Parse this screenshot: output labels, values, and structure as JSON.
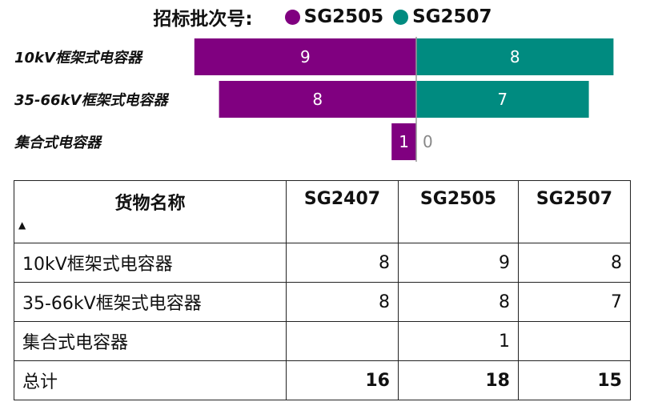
{
  "chart_data": {
    "type": "bar",
    "orientation": "diverging-horizontal",
    "legend_title": "招标批次号:",
    "legend_placement": "top",
    "categories": [
      "10kV框架式电容器",
      "35-66kV框架式电容器",
      "集合式电容器"
    ],
    "series": [
      {
        "name": "SG2505",
        "color": "#800080",
        "side": "left",
        "values": [
          9,
          8,
          1
        ]
      },
      {
        "name": "SG2507",
        "color": "#008B80",
        "side": "right",
        "values": [
          8,
          7,
          0
        ]
      }
    ]
  },
  "table": {
    "headers": [
      "货物名称",
      "SG2407",
      "SG2505",
      "SG2507"
    ],
    "sort_indicator": "▲",
    "rows": [
      [
        "10kV框架式电容器",
        "8",
        "9",
        "8"
      ],
      [
        "35-66kV框架式电容器",
        "8",
        "8",
        "7"
      ],
      [
        "集合式电容器",
        "",
        "1",
        ""
      ]
    ],
    "total": [
      "总计",
      "16",
      "18",
      "15"
    ]
  }
}
